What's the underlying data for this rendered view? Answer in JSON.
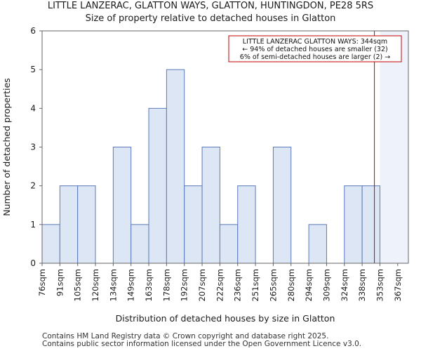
{
  "chart_data": {
    "type": "bar",
    "title": "LITTLE LANZERAC, GLATTON WAYS, GLATTON, HUNTINGDON, PE28 5RS",
    "subtitle": "Size of property relative to detached houses in Glatton",
    "xlabel": "Distribution of detached houses by size in Glatton",
    "ylabel": "Number of detached properties",
    "categories": [
      "76sqm",
      "91sqm",
      "105sqm",
      "120sqm",
      "134sqm",
      "149sqm",
      "163sqm",
      "178sqm",
      "192sqm",
      "207sqm",
      "222sqm",
      "236sqm",
      "251sqm",
      "265sqm",
      "280sqm",
      "294sqm",
      "309sqm",
      "324sqm",
      "338sqm",
      "353sqm",
      "367sqm"
    ],
    "values": [
      1,
      2,
      2,
      0,
      3,
      1,
      4,
      5,
      2,
      3,
      1,
      2,
      0,
      3,
      0,
      1,
      0,
      2,
      2,
      0,
      0
    ],
    "ylim": [
      0,
      6
    ],
    "yticks": [
      0,
      1,
      2,
      3,
      4,
      5,
      6
    ],
    "bar_color": "#dce6f4",
    "bar_edge": "#5b7ab8",
    "marker": {
      "position_index": 18.69,
      "color": "#c00000",
      "label_line1": "LITTLE LANZERAC GLATTON WAYS: 344sqm",
      "label_line2": "← 94% of detached houses are smaller (32)",
      "label_line3": "6% of semi-detached houses are larger (2) →"
    },
    "shade_from_index": 19
  },
  "footer": {
    "line1": "Contains HM Land Registry data © Crown copyright and database right 2025.",
    "line2": "Contains public sector information licensed under the Open Government Licence v3.0."
  }
}
